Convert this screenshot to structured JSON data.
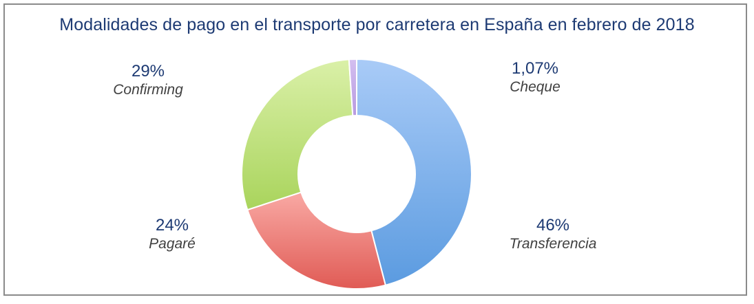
{
  "chart_data": {
    "type": "pie",
    "title": "Modalidades de pago en el transporte por carretera en España en febrero de 2018",
    "slices": [
      {
        "label": "Transferencia",
        "value": 46,
        "value_label": "46%",
        "color_top": "#a9cbf7",
        "color_bottom": "#5b9be0"
      },
      {
        "label": "Pagaré",
        "value": 24,
        "value_label": "24%",
        "color_top": "#f9a9a4",
        "color_bottom": "#e05b55"
      },
      {
        "label": "Confirming",
        "value": 29,
        "value_label": "29%",
        "color_top": "#daf0a8",
        "color_bottom": "#a9d45c"
      },
      {
        "label": "Cheque",
        "value": 1.07,
        "value_label": "1,07%",
        "color_top": "#d3bff0",
        "color_bottom": "#b89ae0"
      }
    ],
    "start_angle_deg": 0,
    "direction": "clockwise",
    "donut": true,
    "legend": "none"
  }
}
